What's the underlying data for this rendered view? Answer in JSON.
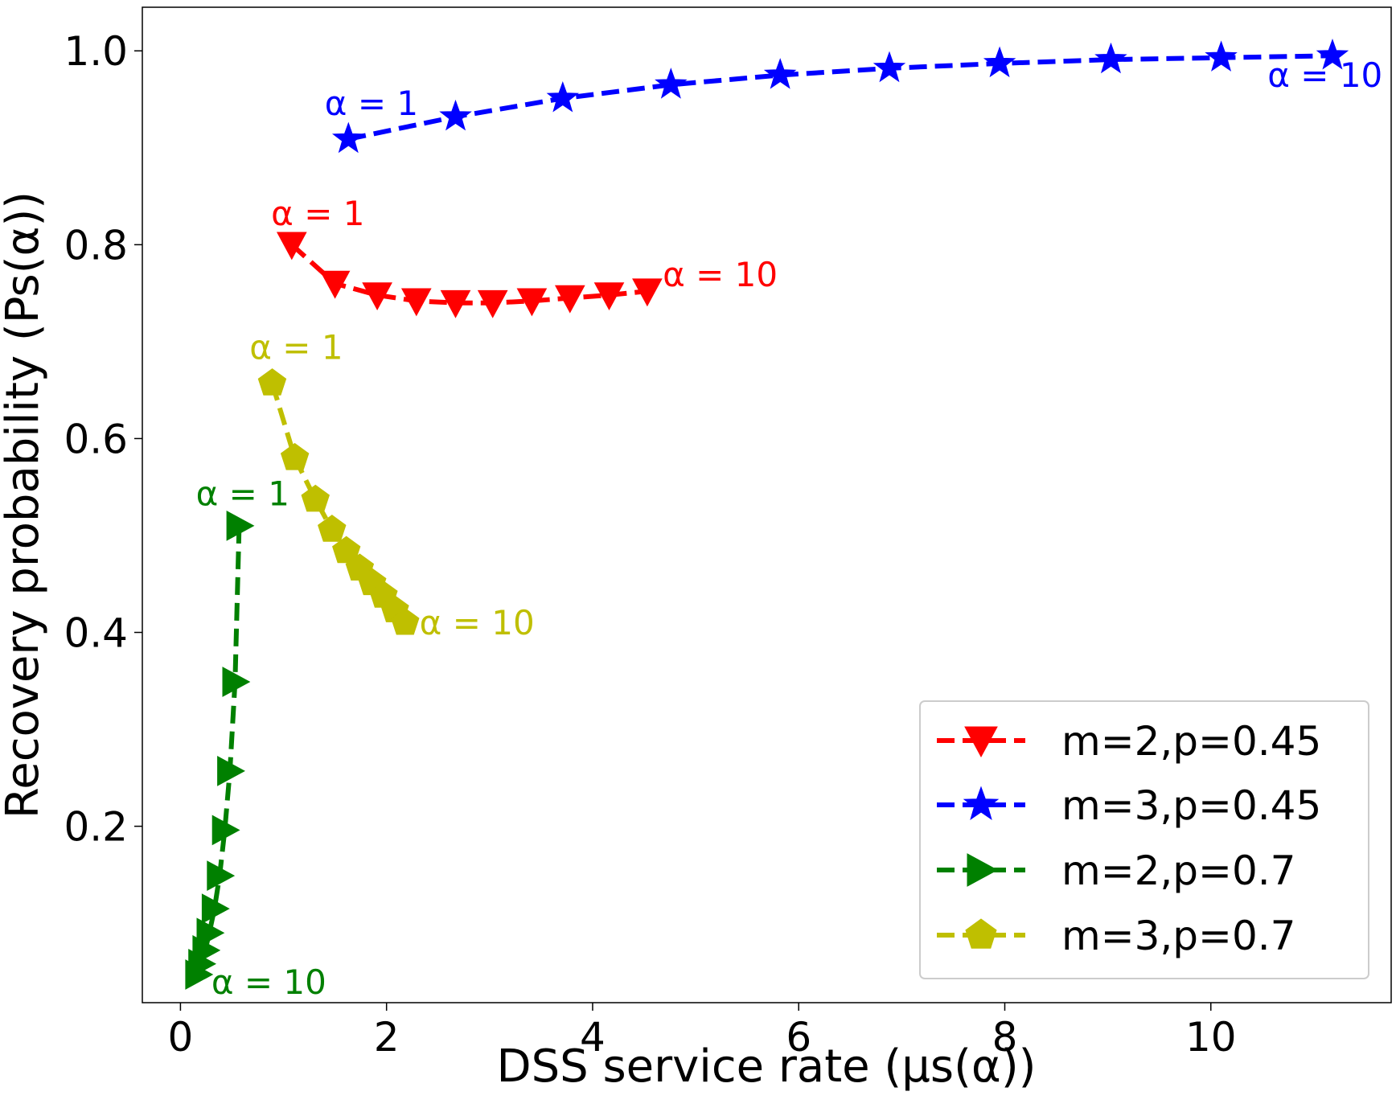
{
  "chart_data": {
    "type": "line",
    "xlabel": "DSS service rate (μs(α))",
    "ylabel": "Recovery probability (Ps(α))",
    "xlim": [
      -0.37,
      11.75
    ],
    "ylim": [
      0.018,
      1.045
    ],
    "xticks": [
      0,
      2,
      4,
      6,
      8,
      10
    ],
    "yticks": [
      0.2,
      0.4,
      0.6,
      0.8,
      1.0
    ],
    "xtick_labels": [
      "0",
      "2",
      "4",
      "6",
      "8",
      "10"
    ],
    "ytick_labels": [
      "0.2",
      "0.4",
      "0.6",
      "0.8",
      "1.0"
    ],
    "legend_position": "lower-right",
    "series": [
      {
        "name": "m=2,p=0.45",
        "color": "#ff0000",
        "marker": "triangle-down",
        "x": [
          1.08,
          1.5,
          1.91,
          2.29,
          2.67,
          3.03,
          3.41,
          3.78,
          4.16,
          4.53
        ],
        "y": [
          0.8,
          0.76,
          0.748,
          0.742,
          0.74,
          0.74,
          0.742,
          0.745,
          0.748,
          0.752
        ]
      },
      {
        "name": "m=3,p=0.45",
        "color": "#0000ff",
        "marker": "star",
        "x": [
          1.63,
          2.67,
          3.71,
          4.76,
          5.82,
          6.88,
          7.95,
          9.03,
          10.1,
          11.18
        ],
        "y": [
          0.909,
          0.932,
          0.951,
          0.965,
          0.975,
          0.982,
          0.987,
          0.991,
          0.993,
          0.995
        ]
      },
      {
        "name": "m=2,p=0.7",
        "color": "#008000",
        "marker": "triangle-right",
        "x": [
          0.57,
          0.53,
          0.48,
          0.43,
          0.38,
          0.33,
          0.28,
          0.24,
          0.2,
          0.17
        ],
        "y": [
          0.51,
          0.349,
          0.257,
          0.196,
          0.149,
          0.115,
          0.09,
          0.072,
          0.058,
          0.047
        ]
      },
      {
        "name": "m=3,p=0.7",
        "color": "#bfbf00",
        "marker": "pentagon",
        "x": [
          0.89,
          1.11,
          1.31,
          1.47,
          1.61,
          1.74,
          1.86,
          1.97,
          2.08,
          2.18
        ],
        "y": [
          0.657,
          0.58,
          0.537,
          0.506,
          0.484,
          0.466,
          0.451,
          0.438,
          0.423,
          0.41
        ]
      }
    ],
    "annotations": [
      {
        "series": 0,
        "text": "α = 1",
        "x": 0.88,
        "y": 0.82
      },
      {
        "series": 0,
        "text": "α = 10",
        "x": 4.68,
        "y": 0.757
      },
      {
        "series": 1,
        "text": "α = 1",
        "x": 1.4,
        "y": 0.934
      },
      {
        "series": 1,
        "text": "α = 10",
        "x": 10.55,
        "y": 0.963
      },
      {
        "series": 2,
        "text": "α = 1",
        "x": 0.15,
        "y": 0.531
      },
      {
        "series": 2,
        "text": "α = 10",
        "x": 0.3,
        "y": 0.027
      },
      {
        "series": 3,
        "text": "α = 1",
        "x": 0.67,
        "y": 0.682
      },
      {
        "series": 3,
        "text": "α = 10",
        "x": 2.32,
        "y": 0.398
      }
    ]
  }
}
